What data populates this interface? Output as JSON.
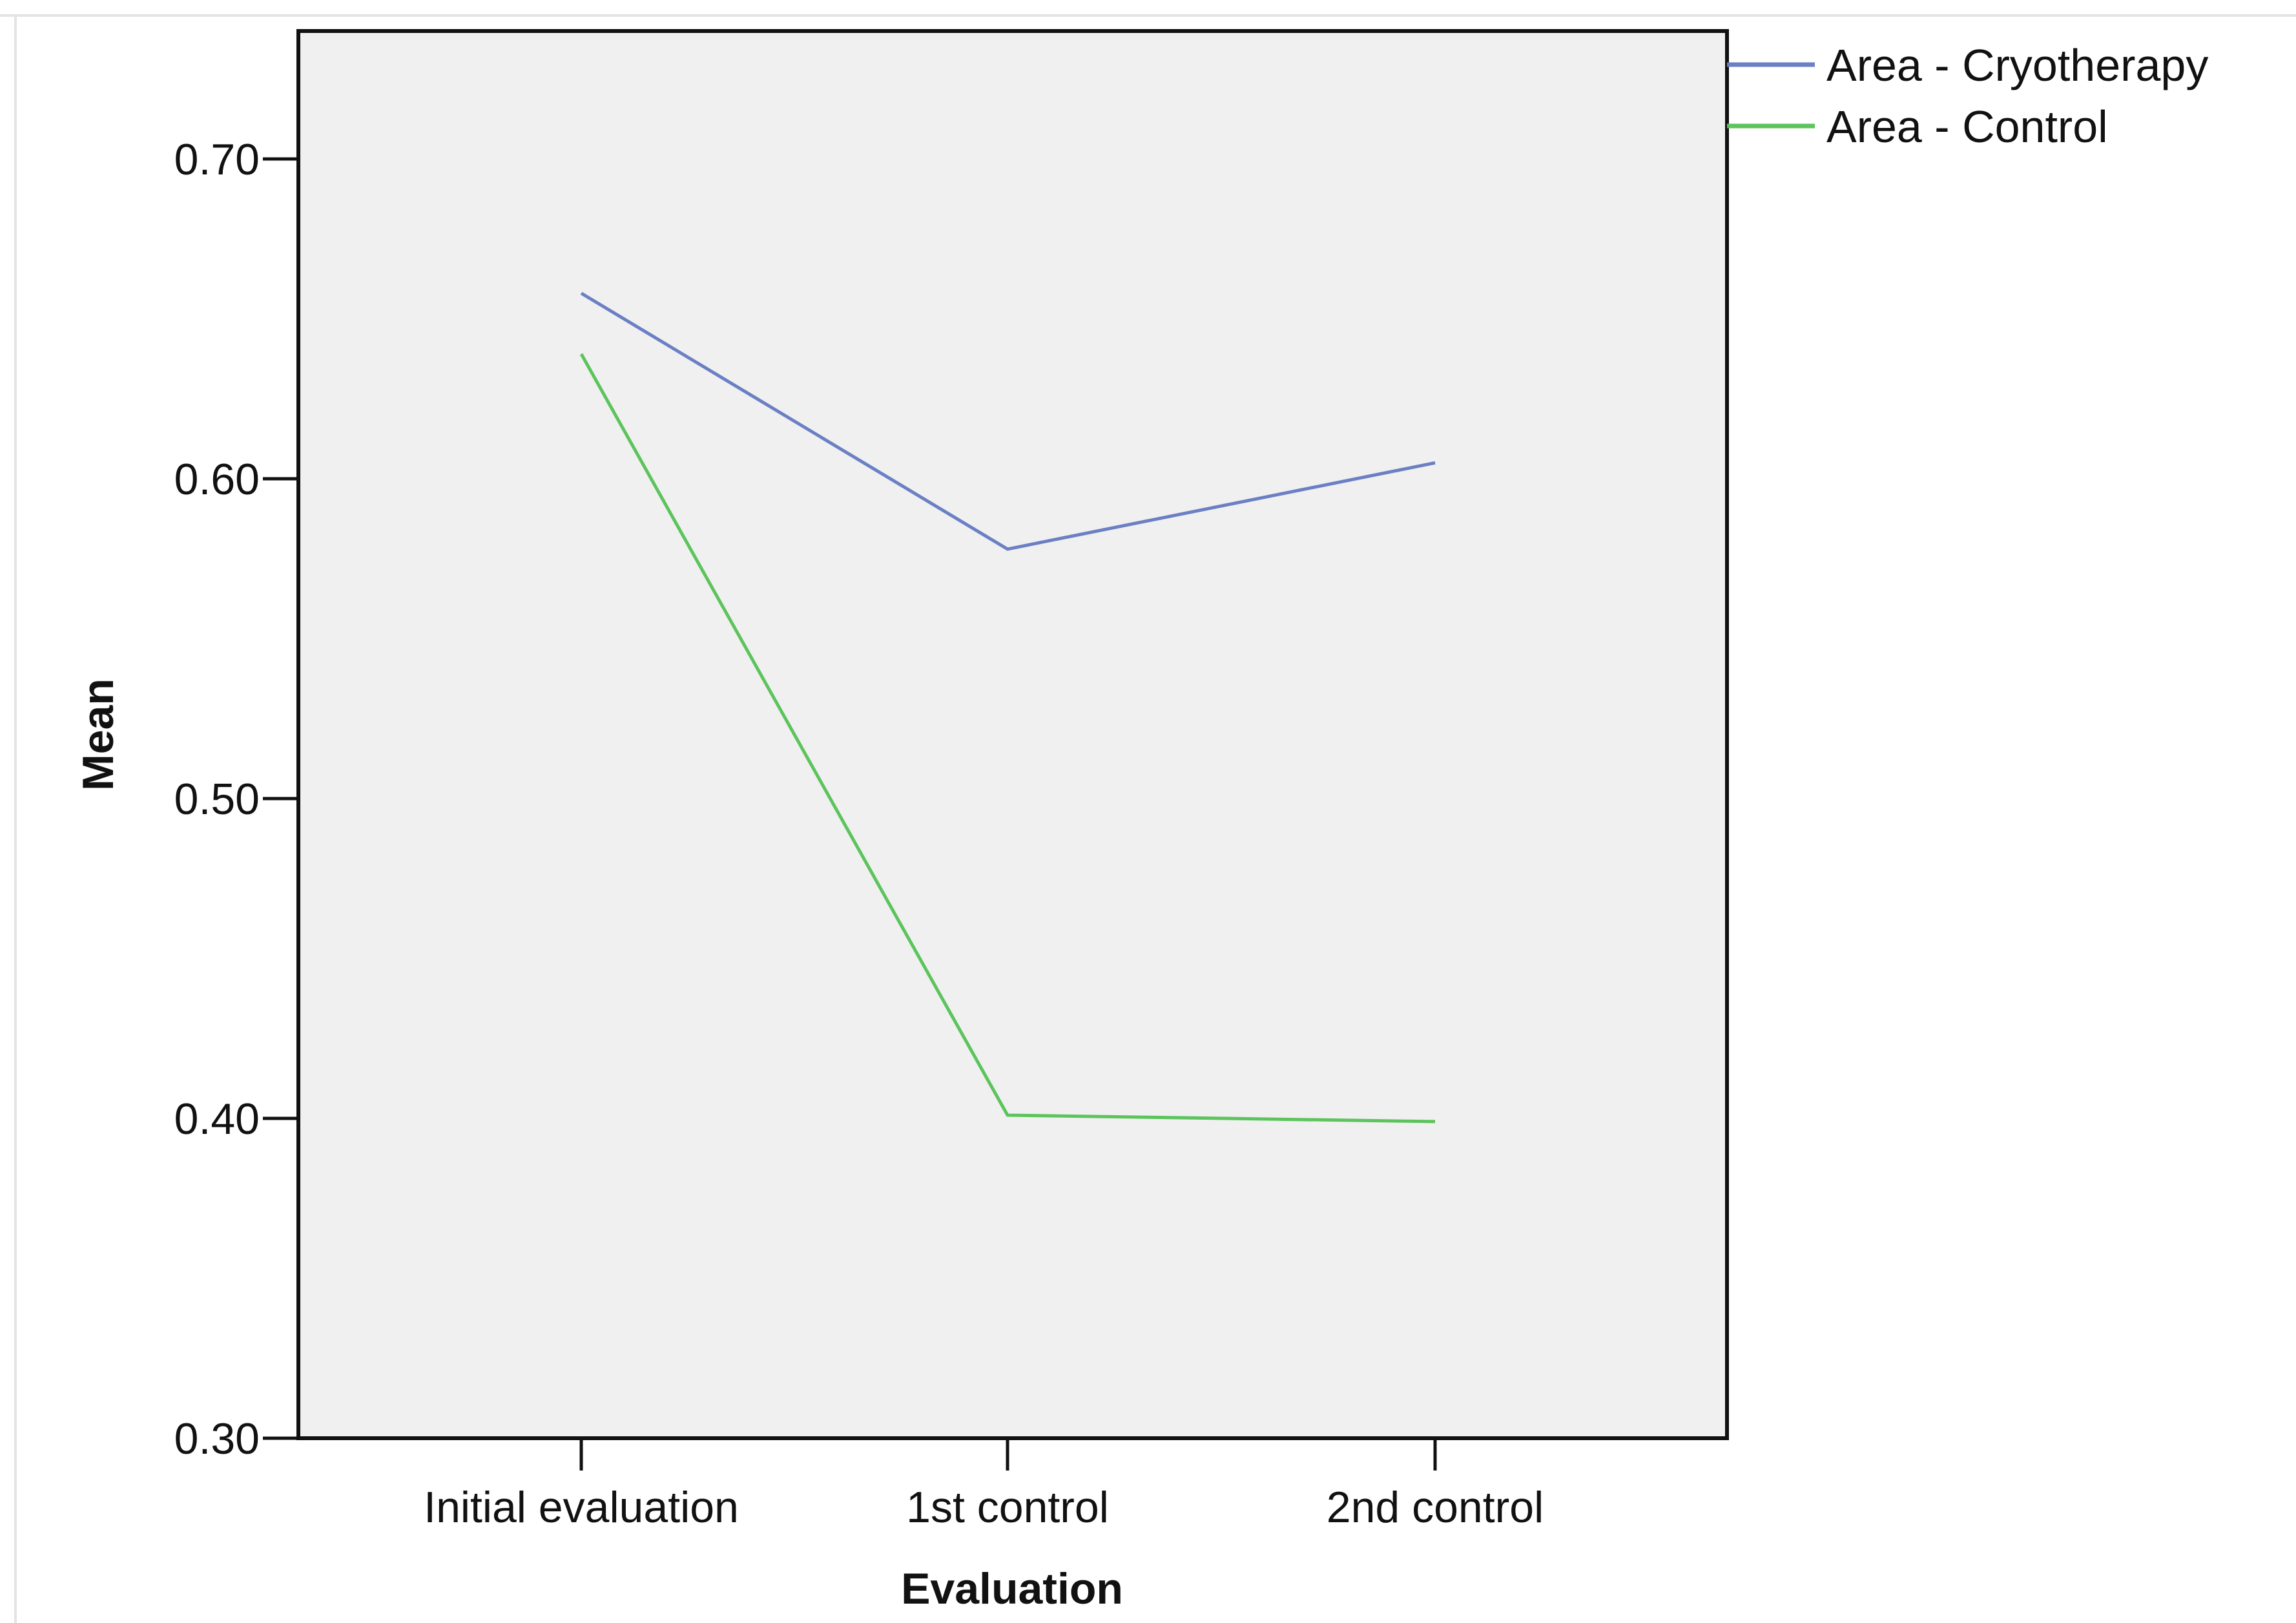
{
  "chart_data": {
    "type": "line",
    "title": "",
    "xlabel": "Evaluation",
    "ylabel": "Mean",
    "categories": [
      "Initial evaluation",
      "1st control",
      "2nd control"
    ],
    "yticks": [
      "0.30",
      "0.40",
      "0.50",
      "0.60",
      "0.70"
    ],
    "ylim": [
      0.3,
      0.74
    ],
    "grid": false,
    "legend_position": "top-right",
    "plot_background": "#f0f0f0",
    "series": [
      {
        "name": "Area - Cryotherapy",
        "color": "#6b7fc4",
        "values": [
          0.658,
          0.578,
          0.605
        ]
      },
      {
        "name": "Area - Control",
        "color": "#5cc45c",
        "values": [
          0.639,
          0.401,
          0.399
        ]
      }
    ]
  }
}
